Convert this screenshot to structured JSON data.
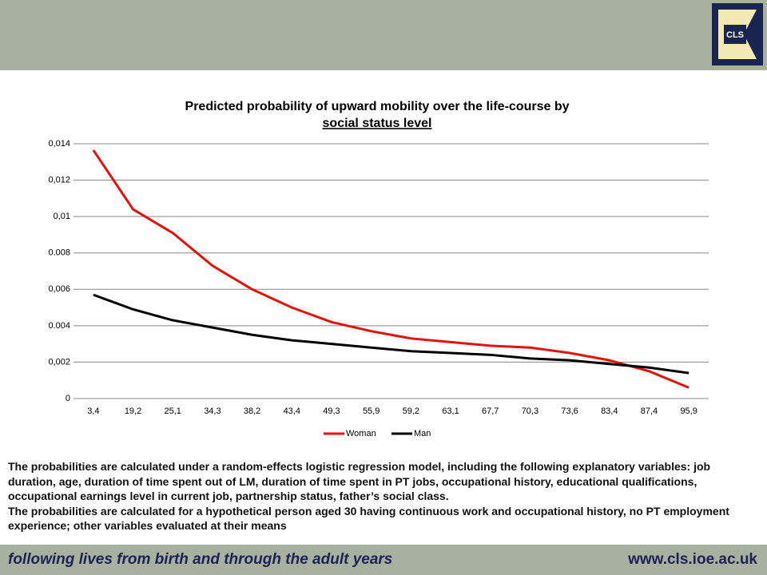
{
  "header": {
    "logo": "CLS"
  },
  "chart_data": {
    "type": "line",
    "title": [
      "Predicted probability of upward mobility  over the life-course by",
      "social status level"
    ],
    "categories": [
      "3,4",
      "19,2",
      "25,1",
      "34,3",
      "38,2",
      "43,4",
      "49,3",
      "55,9",
      "59,2",
      "63,1",
      "67,7",
      "70,3",
      "73,6",
      "83,4",
      "87,4",
      "95,9"
    ],
    "series": [
      {
        "name": "Woman",
        "color": "#e3120b",
        "values": [
          0.01365,
          0.0104,
          0.0091,
          0.0073,
          0.006,
          0.005,
          0.0042,
          0.0037,
          0.0033,
          0.0031,
          0.0029,
          0.0028,
          0.0025,
          0.0021,
          0.0015,
          0.0006
        ]
      },
      {
        "name": "Man",
        "color": "#000000",
        "values": [
          0.0057,
          0.0049,
          0.0043,
          0.0039,
          0.0035,
          0.0032,
          0.003,
          0.0028,
          0.0026,
          0.0025,
          0.0024,
          0.0022,
          0.0021,
          0.0019,
          0.0017,
          0.0014
        ]
      }
    ],
    "ylim": [
      0,
      0.014
    ],
    "yticks": [
      0,
      {
        "value": 0.002,
        "label": "0,002"
      },
      {
        "value": 0.004,
        "label": "0.004"
      },
      {
        "value": 0.006,
        "label": "0,006"
      },
      {
        "value": 0.008,
        "label": "0.008"
      },
      {
        "value": 0.01,
        "label": "0,01"
      },
      {
        "value": 0.012,
        "label": "0,012"
      },
      {
        "value": 0.014,
        "label": "0,014"
      }
    ],
    "grid": true,
    "legend": "bottom"
  },
  "notes": [
    "The probabilities are calculated under a random-effects logistic regression model, including the following explanatory variables: job duration, age, duration of time spent out of LM, duration of time spent in PT jobs, occupational history, educational qualifications, occupational earnings level in current job, partnership status, father’s social class.",
    "The probabilities are calculated for a hypothetical person aged 30 having continuous work and occupational history, no PT employment experience; other variables evaluated at their means"
  ],
  "footer": {
    "tagline": "following lives from birth and through the adult years",
    "url": "www.cls.ioe.ac.uk"
  }
}
